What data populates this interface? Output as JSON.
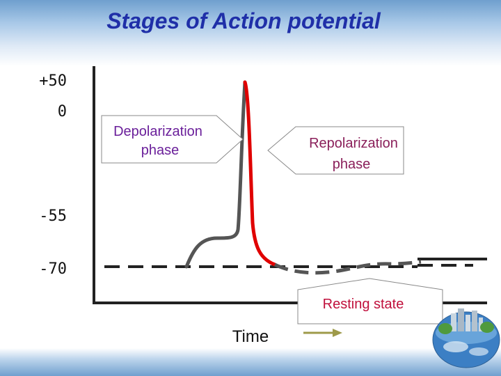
{
  "title": "Stages of Action potential",
  "y_labels": [
    "+50",
    "0",
    "-55",
    "-70"
  ],
  "x_label": "Time",
  "callouts": {
    "depolarization": [
      "Depolarization",
      "phase"
    ],
    "repolarization": [
      "Repolarization",
      "phase"
    ],
    "resting": "Resting state"
  },
  "colors": {
    "title": "#1f2fa8",
    "depolarization_text": "#6a1f9a",
    "repolarization_text": "#8a1f5a",
    "resting_text": "#c0103c",
    "rising_curve": "#555555",
    "falling_curve": "#e00000",
    "baseline": "#222222",
    "arrow": "#9e9a4a"
  }
}
